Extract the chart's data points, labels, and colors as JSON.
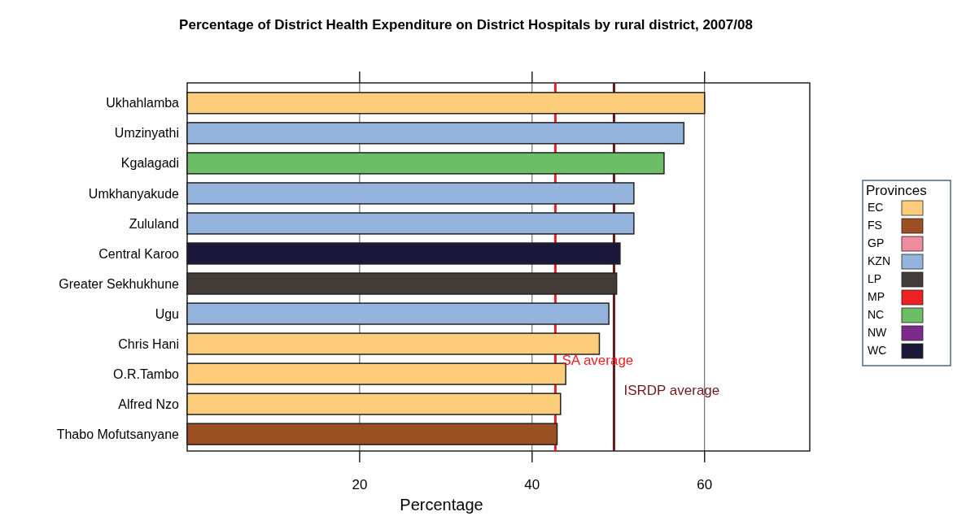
{
  "chart_data": {
    "type": "bar",
    "orientation": "horizontal",
    "title": "Percentage of District Health Expenditure on District Hospitals by rural district, 2007/08",
    "xlabel": "Percentage",
    "legend_title": "Provinces",
    "legend": "right",
    "grid": "x",
    "categories": [
      "Ukhahlamba",
      "Umzinyathi",
      "Kgalagadi",
      "Umkhanyakude",
      "Zululand",
      "Central Karoo",
      "Greater Sekhukhune",
      "Ugu",
      "Chris Hani",
      "O.R.Tambo",
      "Alfred Nzo",
      "Thabo Mofutsanyane"
    ],
    "xlim": [
      0,
      72.2
    ],
    "xticks": [
      20,
      40,
      60
    ],
    "series": [
      {
        "name": "EC",
        "color": "#fdcd7c",
        "values": [
          60,
          null,
          null,
          null,
          null,
          null,
          null,
          null,
          47.8,
          43.9,
          43.3,
          null
        ]
      },
      {
        "name": "FS",
        "color": "#9c4f22",
        "values": [
          null,
          null,
          null,
          null,
          null,
          null,
          null,
          null,
          null,
          null,
          null,
          42.9
        ]
      },
      {
        "name": "GP",
        "color": "#f08ca0",
        "values": [
          null,
          null,
          null,
          null,
          null,
          null,
          null,
          null,
          null,
          null,
          null,
          null
        ]
      },
      {
        "name": "KZN",
        "color": "#94b4de",
        "values": [
          null,
          57.6,
          null,
          51.8,
          51.8,
          null,
          null,
          48.9,
          null,
          null,
          null,
          null
        ]
      },
      {
        "name": "LP",
        "color": "#433b38",
        "values": [
          null,
          null,
          null,
          null,
          null,
          null,
          49.8,
          null,
          null,
          null,
          null,
          null
        ]
      },
      {
        "name": "MP",
        "color": "#ee2024",
        "values": [
          null,
          null,
          null,
          null,
          null,
          null,
          null,
          null,
          null,
          null,
          null,
          null
        ]
      },
      {
        "name": "NC",
        "color": "#6bbd66",
        "values": [
          null,
          null,
          55.3,
          null,
          null,
          null,
          null,
          null,
          null,
          null,
          null,
          null
        ]
      },
      {
        "name": "NW",
        "color": "#7d2a8c",
        "values": [
          null,
          null,
          null,
          null,
          null,
          null,
          null,
          null,
          null,
          null,
          null,
          null
        ]
      },
      {
        "name": "WC",
        "color": "#1b1738",
        "values": [
          null,
          null,
          null,
          null,
          null,
          50.2,
          null,
          null,
          null,
          null,
          null,
          null
        ]
      }
    ],
    "ref_lines": [
      {
        "axis": "x",
        "value": 42.7,
        "label": "SA average",
        "color": "#ee2024"
      },
      {
        "axis": "x",
        "value": 49.5,
        "label": "ISRDP average",
        "color": "#6b1a1a"
      }
    ]
  }
}
